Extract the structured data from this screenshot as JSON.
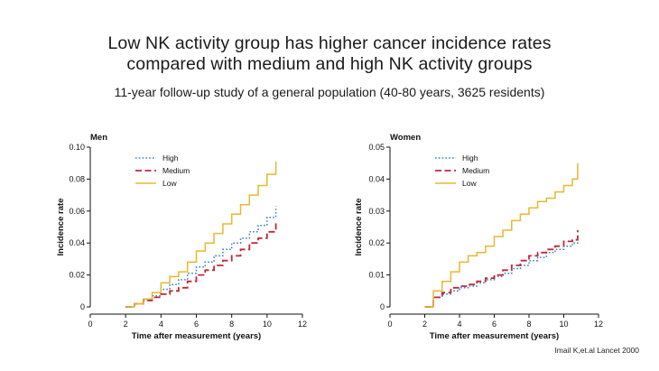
{
  "header": {
    "title_line1": "Low NK activity group has higher cancer incidence rates",
    "title_line2": "compared with medium and high NK activity groups",
    "subtitle": "11-year follow-up study of a general population (40-80 years, 3625 residents)"
  },
  "credit": "Imail K,et.al Lancet 2000",
  "colors": {
    "High": "#3a7ebf",
    "Medium": "#c0283a",
    "Low": "#e8b830"
  },
  "chart_data": [
    {
      "type": "line",
      "title": "Men",
      "xlabel": "Time after measurement (years)",
      "ylabel": "Incidence rate",
      "xlim": [
        0,
        12
      ],
      "ylim": [
        0,
        0.1
      ],
      "xticks": [
        "0",
        "2",
        "4",
        "6",
        "8",
        "10",
        "12"
      ],
      "yticks": [
        "0",
        "0.02",
        "0.04",
        "0.06",
        "0.08",
        "0.10"
      ],
      "legend_position": "top-left",
      "series": [
        {
          "name": "High",
          "style": "dotted",
          "x": [
            2,
            2.5,
            3,
            3.5,
            4,
            4.5,
            5,
            5.5,
            6,
            6.5,
            7,
            7.5,
            8,
            8.5,
            9,
            9.5,
            10,
            10.5
          ],
          "y": [
            0,
            0.002,
            0.004,
            0.007,
            0.011,
            0.014,
            0.017,
            0.021,
            0.025,
            0.028,
            0.032,
            0.036,
            0.04,
            0.043,
            0.047,
            0.051,
            0.056,
            0.063
          ]
        },
        {
          "name": "Medium",
          "style": "dashed",
          "x": [
            2,
            2.5,
            3,
            3.5,
            4,
            4.5,
            5,
            5.5,
            6,
            6.5,
            7,
            7.5,
            8,
            8.5,
            9,
            9.5,
            10,
            10.5
          ],
          "y": [
            0,
            0.002,
            0.004,
            0.006,
            0.008,
            0.01,
            0.012,
            0.016,
            0.02,
            0.023,
            0.026,
            0.029,
            0.032,
            0.036,
            0.04,
            0.043,
            0.047,
            0.054
          ]
        },
        {
          "name": "Low",
          "style": "solid",
          "x": [
            2,
            2.5,
            3,
            3.5,
            4,
            4.5,
            5,
            5.5,
            6,
            6.5,
            7,
            7.5,
            8,
            8.5,
            9,
            9.5,
            10,
            10.5
          ],
          "y": [
            0,
            0.002,
            0.005,
            0.009,
            0.015,
            0.019,
            0.022,
            0.028,
            0.035,
            0.04,
            0.046,
            0.052,
            0.058,
            0.064,
            0.07,
            0.076,
            0.083,
            0.091
          ]
        }
      ]
    },
    {
      "type": "line",
      "title": "Women",
      "xlabel": "Time after measurement (years)",
      "ylabel": "Incidence rate",
      "xlim": [
        0,
        12
      ],
      "ylim": [
        0,
        0.05
      ],
      "xticks": [
        "0",
        "2",
        "4",
        "6",
        "8",
        "10",
        "12"
      ],
      "yticks": [
        "0",
        "0.01",
        "0.02",
        "0.03",
        "0.04",
        "0.05"
      ],
      "legend_position": "top-left",
      "series": [
        {
          "name": "High",
          "style": "dotted",
          "x": [
            2,
            2.5,
            3,
            3.5,
            4,
            4.5,
            5,
            5.5,
            6,
            6.5,
            7,
            7.5,
            8,
            8.5,
            9,
            9.5,
            10,
            10.5,
            10.8
          ],
          "y": [
            0,
            0.003,
            0.004,
            0.005,
            0.006,
            0.0065,
            0.0075,
            0.0085,
            0.0095,
            0.0105,
            0.012,
            0.013,
            0.0145,
            0.0155,
            0.017,
            0.018,
            0.019,
            0.02,
            0.023
          ]
        },
        {
          "name": "Medium",
          "style": "dashed",
          "x": [
            2,
            2.5,
            3,
            3.5,
            4,
            4.5,
            5,
            5.5,
            6,
            6.5,
            7,
            7.5,
            8,
            8.5,
            9,
            9.5,
            10,
            10.5,
            10.8
          ],
          "y": [
            0,
            0.003,
            0.0045,
            0.006,
            0.0065,
            0.007,
            0.008,
            0.009,
            0.01,
            0.0115,
            0.013,
            0.0145,
            0.016,
            0.017,
            0.018,
            0.019,
            0.0205,
            0.021,
            0.024
          ]
        },
        {
          "name": "Low",
          "style": "solid",
          "x": [
            2,
            2.5,
            3,
            3.5,
            4,
            4.5,
            5,
            5.5,
            6,
            6.5,
            7,
            7.5,
            8,
            8.5,
            9,
            9.5,
            10,
            10.5,
            10.8
          ],
          "y": [
            0,
            0.005,
            0.008,
            0.011,
            0.014,
            0.016,
            0.017,
            0.019,
            0.022,
            0.024,
            0.027,
            0.029,
            0.031,
            0.033,
            0.034,
            0.036,
            0.038,
            0.04,
            0.045
          ]
        }
      ]
    }
  ]
}
